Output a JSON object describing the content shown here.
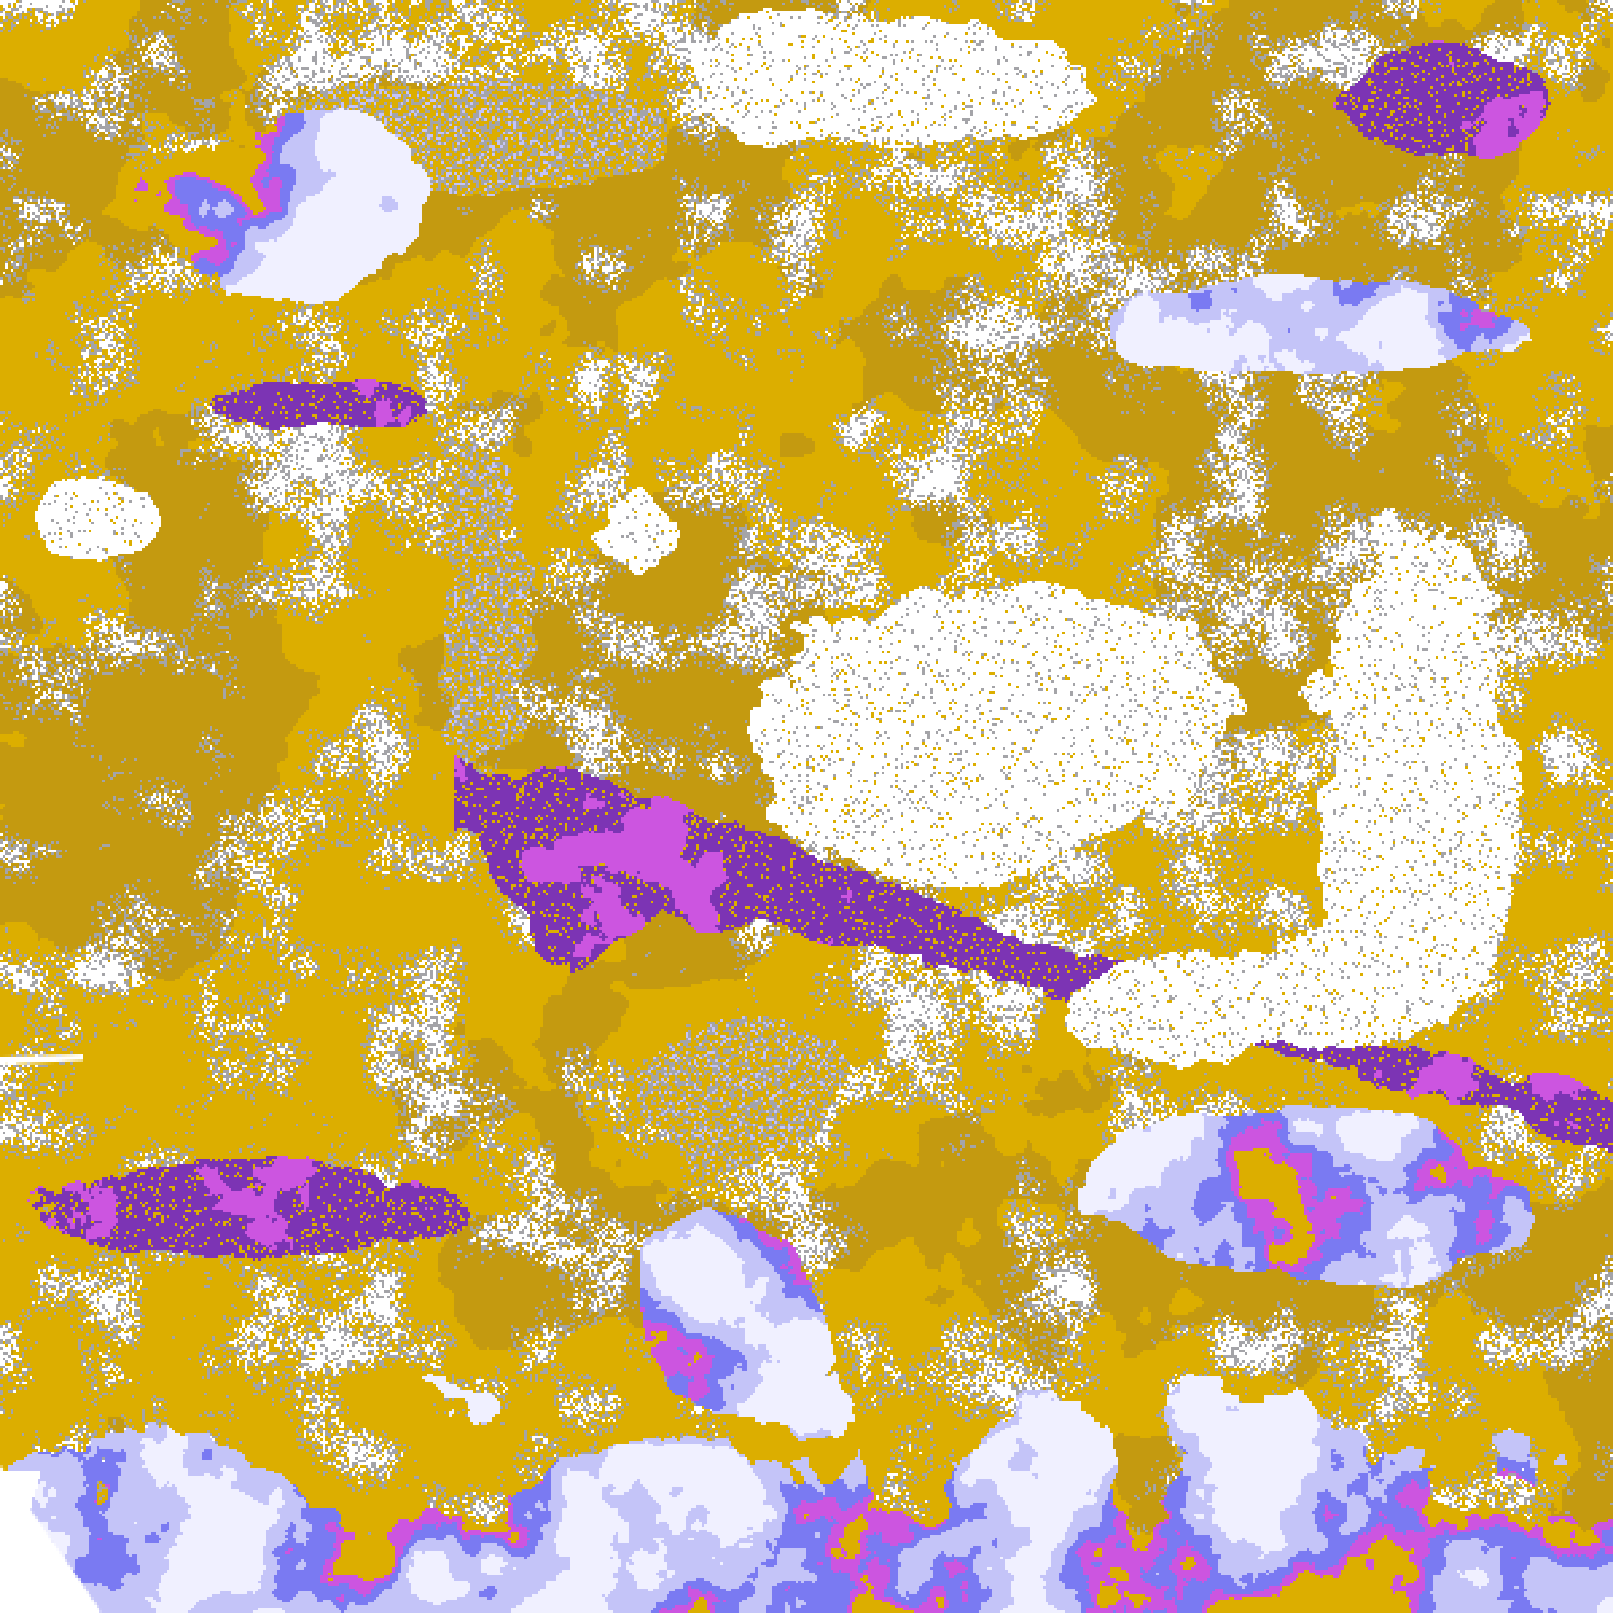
{
  "image": {
    "kind": "false-color classified satellite imagery",
    "palette": {
      "background": "#ffffff",
      "gold": "#dcae00",
      "dark_gold": "#c49a10",
      "gray": "#a4a4a8",
      "pale_lavender": "#f0f0ff",
      "light_periwinkle": "#c4c4f8",
      "periwinkle": "#7a7af2",
      "purple": "#7c34b4",
      "magenta": "#cc55e0"
    }
  }
}
